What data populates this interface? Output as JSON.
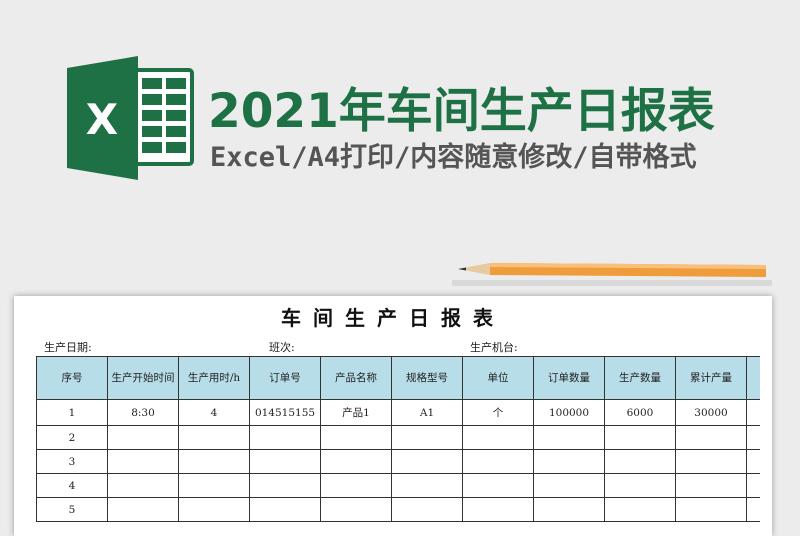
{
  "banner": {
    "title": "2021年车间生产日报表",
    "subtitle": "Excel/A4打印/内容随意修改/自带格式",
    "logo_letter": "X",
    "accent": "#1e7145"
  },
  "sheet": {
    "title": "车间生产日报表",
    "meta": {
      "date_label": "生产日期:",
      "shift_label": "班次:",
      "machine_label": "生产机台:"
    },
    "headers": [
      "序号",
      "生产开始时间",
      "生产用时/h",
      "订单号",
      "产品名称",
      "规格型号",
      "单位",
      "订单数量",
      "生产数量",
      "累计产量"
    ],
    "header_bg": "#b7dde8",
    "rows": [
      [
        "1",
        "8:30",
        "4",
        "014515155",
        "产品1",
        "A1",
        "个",
        "100000",
        "6000",
        "30000"
      ],
      [
        "2",
        "",
        "",
        "",
        "",
        "",
        "",
        "",
        "",
        ""
      ],
      [
        "3",
        "",
        "",
        "",
        "",
        "",
        "",
        "",
        "",
        ""
      ],
      [
        "4",
        "",
        "",
        "",
        "",
        "",
        "",
        "",
        "",
        ""
      ],
      [
        "5",
        "",
        "",
        "",
        "",
        "",
        "",
        "",
        "",
        ""
      ]
    ]
  }
}
